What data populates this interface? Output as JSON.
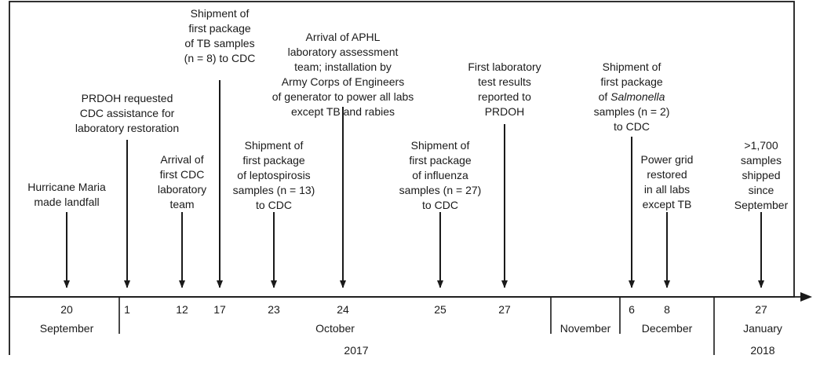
{
  "events": [
    {
      "lines": [
        "Hurricane Maria",
        "made landfall"
      ]
    },
    {
      "lines": [
        "PRDOH requested",
        "CDC assistance for",
        "laboratory restoration"
      ]
    },
    {
      "lines": [
        "Arrival of",
        "first CDC",
        "laboratory",
        "team"
      ]
    },
    {
      "lines": [
        "Shipment of",
        "first package",
        "of TB samples",
        "(n = 8) to CDC"
      ]
    },
    {
      "lines": [
        "Shipment of",
        "first package",
        "of leptospirosis",
        "samples (n = 13)",
        "to CDC"
      ]
    },
    {
      "lines": [
        "Arrival of APHL",
        "laboratory assessment",
        "team; installation by",
        "Army Corps of Engineers",
        "of generator to power all labs",
        "except TB and rabies"
      ]
    },
    {
      "lines": [
        "Shipment of",
        "first package",
        "of influenza",
        "samples (n = 27)",
        "to CDC"
      ]
    },
    {
      "lines": [
        "First laboratory",
        "test results",
        "reported to",
        "PRDOH"
      ]
    },
    {
      "lines": [
        "Shipment of",
        "first package",
        "of Salmonella",
        "samples (n = 2)",
        "to CDC"
      ],
      "italic_word": "Salmonella"
    },
    {
      "lines": [
        "Power grid",
        "restored",
        "in all labs",
        "except TB"
      ]
    },
    {
      "lines": [
        ">1,700",
        "samples",
        "shipped",
        "since",
        "September"
      ]
    }
  ],
  "day_ticks": [
    "20",
    "1",
    "12",
    "17",
    "23",
    "24",
    "25",
    "27",
    "6",
    "8",
    "27"
  ],
  "months": [
    "September",
    "October",
    "November",
    "December",
    "January"
  ],
  "years": [
    "2017",
    "2018"
  ]
}
